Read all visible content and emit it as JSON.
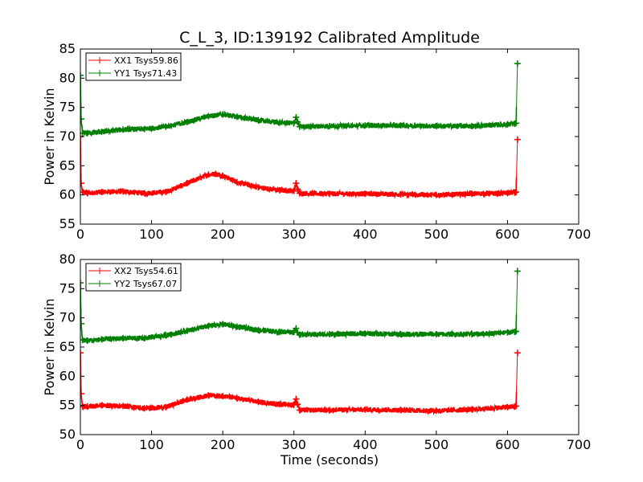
{
  "chart_data": [
    {
      "type": "line",
      "title": "C_L_3, ID:139192 Calibrated Amplitude",
      "xlabel": "",
      "ylabel": "Power in Kelvin",
      "xlim": [
        0,
        700
      ],
      "ylim": [
        55,
        85
      ],
      "xticks": [
        0,
        100,
        200,
        300,
        400,
        500,
        600,
        700
      ],
      "yticks": [
        55,
        60,
        65,
        70,
        75,
        80,
        85
      ],
      "legend_position": "top-left",
      "series": [
        {
          "name": "XX1 Tsys59.86",
          "color": "#ff0000",
          "x": [
            0,
            1,
            3,
            10,
            30,
            60,
            90,
            120,
            150,
            180,
            190,
            200,
            220,
            250,
            280,
            300,
            303,
            305,
            308,
            350,
            400,
            450,
            500,
            550,
            600,
            610,
            612,
            614
          ],
          "y": [
            70,
            62,
            60.5,
            60.3,
            60.5,
            60.6,
            60.3,
            60.5,
            62,
            63.5,
            63.6,
            63.3,
            62.2,
            61.3,
            60.8,
            60.7,
            62,
            61,
            60.3,
            60.2,
            60.2,
            60.1,
            60.0,
            60.2,
            60.3,
            60.4,
            60.5,
            69.5
          ]
        },
        {
          "name": "YY1 Tsys71.43",
          "color": "#008000",
          "x": [
            0,
            1,
            3,
            10,
            30,
            60,
            90,
            120,
            150,
            180,
            200,
            220,
            250,
            280,
            300,
            303,
            305,
            308,
            350,
            400,
            450,
            500,
            550,
            600,
            610,
            612,
            614
          ],
          "y": [
            80.5,
            73,
            70.6,
            70.6,
            70.8,
            71.2,
            71.3,
            71.7,
            72.5,
            73.5,
            73.8,
            73.4,
            72.8,
            72.4,
            72.3,
            73.3,
            72.5,
            71.7,
            71.8,
            71.9,
            71.9,
            71.8,
            71.8,
            72.1,
            72.2,
            72.3,
            82.5
          ]
        }
      ]
    },
    {
      "type": "line",
      "title": "",
      "xlabel": "Time (seconds)",
      "ylabel": "Power in Kelvin",
      "xlim": [
        0,
        700
      ],
      "ylim": [
        50,
        80
      ],
      "xticks": [
        0,
        100,
        200,
        300,
        400,
        500,
        600,
        700
      ],
      "yticks": [
        50,
        55,
        60,
        65,
        70,
        75,
        80
      ],
      "legend_position": "top-left",
      "series": [
        {
          "name": "XX2 Tsys54.61",
          "color": "#ff0000",
          "x": [
            0,
            1,
            3,
            10,
            30,
            60,
            90,
            120,
            150,
            180,
            200,
            220,
            250,
            280,
            300,
            303,
            305,
            308,
            350,
            400,
            450,
            500,
            550,
            600,
            610,
            612,
            614
          ],
          "y": [
            64,
            57,
            54.8,
            54.8,
            55.0,
            54.9,
            54.5,
            54.7,
            56.0,
            56.7,
            56.6,
            56.2,
            55.6,
            55.2,
            55.1,
            56.1,
            55.2,
            54.2,
            54.2,
            54.3,
            54.2,
            54.1,
            54.3,
            54.7,
            54.8,
            54.9,
            64
          ]
        },
        {
          "name": "YY2 Tsys67.07",
          "color": "#008000",
          "x": [
            0,
            1,
            3,
            10,
            30,
            60,
            90,
            120,
            150,
            180,
            200,
            220,
            250,
            280,
            300,
            303,
            305,
            308,
            350,
            400,
            450,
            500,
            550,
            600,
            610,
            612,
            614
          ],
          "y": [
            76,
            69,
            66.2,
            66.1,
            66.3,
            66.5,
            66.5,
            67.0,
            67.8,
            68.6,
            68.9,
            68.5,
            67.9,
            67.6,
            67.6,
            68.2,
            67.5,
            67.1,
            67.2,
            67.3,
            67.2,
            67.2,
            67.2,
            67.5,
            67.6,
            67.7,
            78
          ]
        }
      ]
    }
  ]
}
